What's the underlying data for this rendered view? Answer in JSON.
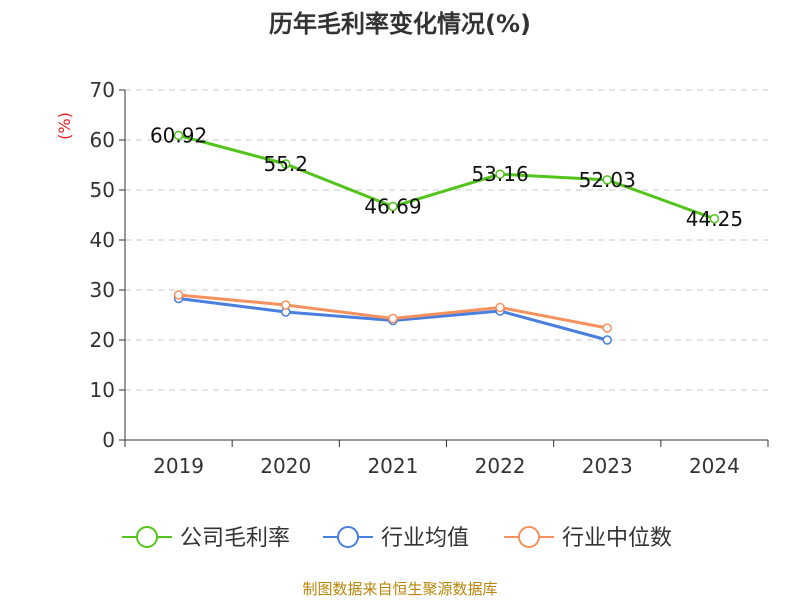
{
  "chart_data": {
    "type": "line",
    "title": "历年毛利率变化情况(%)",
    "ylabel": "(%)",
    "xlabel": "",
    "categories": [
      "2019",
      "2020",
      "2021",
      "2022",
      "2023",
      "2024"
    ],
    "ylim": [
      0,
      70
    ],
    "yticks": [
      0,
      10,
      20,
      30,
      40,
      50,
      60,
      70
    ],
    "grid": true,
    "legend_position": "bottom",
    "series": [
      {
        "name": "公司毛利率",
        "color": "#52c41a",
        "values": [
          60.92,
          55.2,
          46.69,
          53.16,
          52.03,
          44.25
        ],
        "data_labels": [
          "60.92",
          "55.2",
          "46.69",
          "53.16",
          "52.03",
          "44.25"
        ]
      },
      {
        "name": "行业均值",
        "color": "#4a7fde",
        "values": [
          28.3,
          25.6,
          23.9,
          25.8,
          20.0,
          null
        ]
      },
      {
        "name": "行业中位数",
        "color": "#f4915e",
        "values": [
          29.0,
          27.0,
          24.3,
          26.5,
          22.4,
          null
        ]
      }
    ]
  },
  "source_text": "制图数据来自恒生聚源数据库"
}
